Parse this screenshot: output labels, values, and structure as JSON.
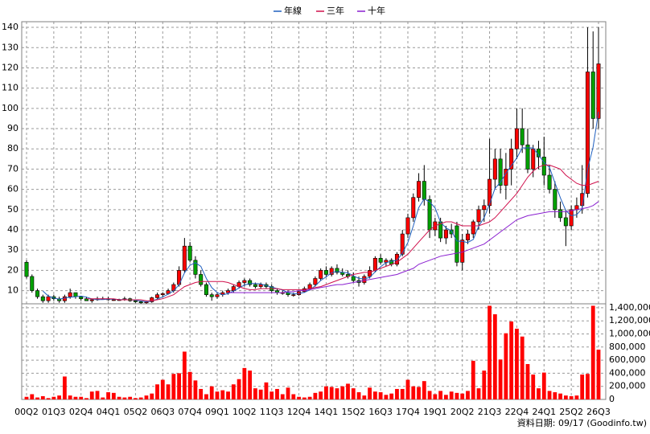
{
  "chart_data": {
    "type": "candlestick",
    "categories": [
      "00Q2",
      null,
      null,
      null,
      null,
      "01Q3",
      null,
      null,
      null,
      null,
      "02Q4",
      null,
      null,
      null,
      null,
      "04Q1",
      null,
      null,
      null,
      null,
      "05Q2",
      null,
      null,
      null,
      null,
      "06Q3",
      null,
      null,
      null,
      null,
      "07Q4",
      null,
      null,
      null,
      null,
      "09Q1",
      null,
      null,
      null,
      null,
      "10Q2",
      null,
      null,
      null,
      null,
      "11Q3",
      null,
      null,
      null,
      null,
      "12Q4",
      null,
      null,
      null,
      null,
      "14Q1",
      null,
      null,
      null,
      null,
      "15Q2",
      null,
      null,
      null,
      null,
      "16Q3",
      null,
      null,
      null,
      null,
      "17Q4",
      null,
      null,
      null,
      null,
      "19Q1",
      null,
      null,
      null,
      null,
      "20Q2",
      null,
      null,
      null,
      null,
      "21Q3",
      null,
      null,
      null,
      null,
      "22Q4",
      null,
      null,
      null,
      null,
      "24Q1",
      null,
      null,
      null,
      null,
      "25Q2",
      null,
      null,
      null,
      null,
      "26Q3"
    ],
    "ohlc": {
      "open": [
        24,
        17,
        10,
        7,
        5,
        7,
        6,
        5,
        7,
        9,
        7,
        6,
        5,
        5.5,
        6,
        6,
        5.5,
        5.5,
        5.5,
        6,
        5,
        4.5,
        4,
        4.5,
        6.5,
        8,
        8.5,
        10,
        13,
        20,
        32,
        25,
        18,
        13,
        8,
        7,
        8,
        9,
        10,
        12,
        14,
        15,
        13,
        12,
        13,
        12,
        10,
        9,
        9,
        8,
        8,
        9.5,
        11,
        13,
        16,
        20,
        18,
        21,
        19,
        18,
        17,
        15,
        14,
        17,
        20,
        26,
        24,
        25,
        23,
        28,
        38,
        46,
        56,
        64,
        55,
        40,
        44,
        36,
        40,
        42,
        24,
        35,
        38,
        44,
        50,
        52,
        65,
        75,
        62,
        70,
        80,
        90,
        82,
        70,
        80,
        76,
        67,
        60,
        50,
        46,
        42,
        50,
        52,
        58,
        118,
        95
      ],
      "high": [
        25,
        18,
        11,
        8,
        8,
        8,
        7,
        8,
        11,
        9,
        7,
        7,
        6,
        7,
        7,
        7,
        6,
        6,
        7,
        6.5,
        5.5,
        5,
        5,
        7,
        9,
        9,
        11,
        14,
        22,
        36,
        34,
        27,
        20,
        14,
        9,
        9,
        10,
        11,
        13,
        15,
        16,
        16,
        14,
        14,
        14,
        13,
        11,
        10,
        10,
        9,
        10,
        12,
        14,
        17,
        21,
        22,
        22,
        23,
        21,
        20,
        19,
        17,
        18,
        22,
        27,
        28,
        26,
        26,
        29,
        40,
        48,
        58,
        68,
        72,
        57,
        46,
        46,
        42,
        43,
        44,
        38,
        40,
        45,
        52,
        55,
        85,
        80,
        80,
        78,
        85,
        100,
        100,
        90,
        82,
        84,
        86,
        72,
        64,
        54,
        50,
        52,
        56,
        72,
        140,
        138,
        140
      ],
      "low": [
        16,
        9,
        6,
        4,
        4,
        5,
        4,
        4,
        6,
        6,
        5,
        5,
        4,
        5,
        5.5,
        5,
        5,
        5,
        5,
        4.5,
        4,
        3.5,
        3.5,
        4,
        6,
        7,
        8,
        9,
        12,
        19,
        24,
        16,
        12,
        7,
        5,
        6,
        7,
        8,
        9,
        11,
        12,
        12,
        11,
        11,
        11,
        9,
        8,
        8,
        7,
        7,
        7.5,
        9,
        10,
        12,
        15,
        17,
        17,
        18,
        17,
        16,
        14,
        12,
        13,
        16,
        19,
        23,
        22,
        22,
        22,
        27,
        36,
        44,
        54,
        52,
        36,
        37,
        34,
        33,
        36,
        22,
        20,
        33,
        36,
        40,
        44,
        48,
        60,
        58,
        55,
        62,
        75,
        78,
        68,
        66,
        70,
        62,
        58,
        46,
        44,
        32,
        40,
        46,
        48,
        56,
        90,
        90
      ],
      "close": [
        17,
        10,
        7,
        5,
        7,
        6,
        5,
        7,
        9,
        7,
        6,
        5,
        5.5,
        6,
        6,
        5.5,
        5.5,
        5.5,
        6,
        5,
        4.5,
        4,
        4.5,
        6.5,
        8,
        8.5,
        10,
        13,
        20,
        32,
        25,
        18,
        13,
        8,
        7,
        8,
        9,
        10,
        12,
        14,
        15,
        13,
        12,
        13,
        12,
        10,
        9,
        9,
        8,
        8,
        9.5,
        11,
        13,
        16,
        20,
        18,
        21,
        19,
        18,
        17,
        15,
        14,
        17,
        20,
        26,
        24,
        25,
        23,
        28,
        38,
        46,
        56,
        64,
        55,
        40,
        44,
        36,
        40,
        38,
        24,
        35,
        38,
        44,
        50,
        52,
        65,
        75,
        62,
        70,
        80,
        90,
        82,
        70,
        80,
        76,
        67,
        60,
        50,
        46,
        42,
        50,
        52,
        58,
        118,
        95,
        122
      ]
    },
    "up_color": "#ff0000",
    "down_color": "#00a000",
    "ylim": [
      3.5,
      142.8
    ],
    "yticks": [
      10,
      20,
      30,
      40,
      50,
      60,
      70,
      80,
      90,
      100,
      110,
      120,
      130,
      140
    ],
    "grid": true,
    "lines": [
      {
        "name": "年線",
        "color": "#1f5fbf",
        "values": [
          null,
          null,
          null,
          9.8,
          7.3,
          6.3,
          5.8,
          6.3,
          6.8,
          7,
          7.3,
          6.8,
          5.9,
          5.6,
          5.6,
          5.8,
          5.8,
          5.6,
          5.6,
          5.5,
          5.3,
          4.9,
          4.5,
          4.9,
          5.8,
          6.9,
          8.3,
          9.9,
          12.9,
          18.8,
          22.5,
          23.8,
          22,
          16,
          11.5,
          9,
          8,
          8.5,
          9.8,
          11.3,
          12.8,
          13.5,
          13.5,
          13.3,
          12.5,
          11.8,
          11,
          10.3,
          9,
          8.5,
          8.6,
          9.1,
          10.4,
          12.4,
          15,
          16.8,
          18.8,
          19.5,
          19,
          18.8,
          17.3,
          16,
          15.8,
          16.5,
          19.3,
          21.8,
          23.8,
          24.5,
          25,
          28.5,
          33.8,
          42,
          51,
          55.3,
          53.8,
          50.8,
          43.8,
          41,
          39.5,
          34.5,
          34.3,
          33.8,
          35.3,
          41.8,
          46,
          52.8,
          60.5,
          63.5,
          68,
          71.8,
          75.5,
          80.5,
          80.5,
          80.5,
          77,
          73.3,
          70.8,
          63.3,
          55.8,
          49.5,
          47,
          47.5,
          50.5,
          70,
          80.8,
          98.3
        ]
      },
      {
        "name": "三年",
        "color": "#d0104c",
        "values": [
          null,
          null,
          null,
          null,
          null,
          null,
          null,
          null,
          null,
          null,
          null,
          6,
          6,
          6,
          6,
          6,
          6,
          5.5,
          5.5,
          5.5,
          5.5,
          5.5,
          5,
          5,
          5.5,
          6,
          7,
          8,
          10,
          12,
          13,
          14,
          14.5,
          14.5,
          14.5,
          14.5,
          14.5,
          14,
          13,
          12,
          11,
          10.5,
          10.5,
          11,
          11,
          11,
          11,
          10.5,
          10.5,
          10.5,
          10.5,
          10.5,
          11,
          11.5,
          12,
          13,
          14,
          15,
          16,
          17,
          18,
          18.5,
          19,
          19,
          20,
          21,
          22,
          23,
          24,
          26,
          28,
          31,
          34,
          37,
          40,
          42,
          43,
          44,
          44,
          43,
          42,
          42,
          42,
          42,
          43,
          44,
          46,
          49,
          52,
          55,
          58,
          62,
          66,
          69,
          71,
          72,
          72,
          71,
          70,
          67,
          65,
          63,
          62,
          62,
          63,
          64
        ]
      },
      {
        "name": "十年",
        "color": "#8a1fd0",
        "values": [
          null,
          null,
          null,
          null,
          null,
          null,
          null,
          null,
          null,
          null,
          null,
          null,
          null,
          null,
          null,
          null,
          null,
          null,
          null,
          null,
          null,
          null,
          null,
          null,
          null,
          null,
          null,
          null,
          null,
          null,
          null,
          null,
          null,
          null,
          null,
          null,
          null,
          9,
          9,
          9,
          9,
          9,
          9,
          9,
          9,
          9,
          9,
          9,
          9.5,
          9.5,
          10,
          10,
          10.5,
          11,
          11.5,
          12,
          12.5,
          13,
          13,
          13.5,
          14,
          14.5,
          15,
          15.5,
          16,
          16.5,
          17,
          17.5,
          18,
          19,
          20,
          21,
          23,
          24,
          25,
          26,
          27,
          27.5,
          28,
          28.5,
          29,
          30,
          31,
          32,
          33,
          35,
          37,
          39,
          41,
          43,
          45,
          46,
          47,
          47.5,
          48,
          48.5,
          49,
          49,
          49,
          49,
          49.5,
          50,
          50.5,
          51,
          52,
          54
        ]
      }
    ],
    "volume": {
      "color": "#ff0000",
      "values": [
        40000,
        80000,
        30000,
        50000,
        20000,
        40000,
        60000,
        350000,
        60000,
        40000,
        40000,
        20000,
        120000,
        130000,
        30000,
        110000,
        100000,
        40000,
        30000,
        40000,
        20000,
        30000,
        60000,
        90000,
        230000,
        300000,
        230000,
        390000,
        400000,
        730000,
        420000,
        290000,
        160000,
        80000,
        200000,
        120000,
        140000,
        120000,
        230000,
        310000,
        480000,
        440000,
        170000,
        150000,
        260000,
        120000,
        160000,
        80000,
        180000,
        80000,
        40000,
        30000,
        40000,
        100000,
        120000,
        200000,
        190000,
        170000,
        200000,
        240000,
        170000,
        110000,
        60000,
        180000,
        120000,
        110000,
        70000,
        90000,
        160000,
        160000,
        300000,
        200000,
        190000,
        280000,
        130000,
        80000,
        130000,
        70000,
        120000,
        100000,
        90000,
        130000,
        590000,
        170000,
        440000,
        1430000,
        1300000,
        610000,
        1010000,
        1190000,
        1080000,
        960000,
        540000,
        380000,
        170000,
        410000,
        130000,
        110000,
        90000,
        60000,
        50000,
        60000,
        380000,
        390000,
        1430000,
        760000
      ],
      "ylim": [
        0,
        1460000
      ],
      "yticks": [
        0,
        {
          "value": 200000,
          "label": "200,000"
        },
        {
          "value": 400000,
          "label": "400,000"
        },
        {
          "value": 600000,
          "label": "600,000"
        },
        {
          "value": 800000,
          "label": "800,000"
        },
        {
          "value": 1000000,
          "label": "1,000,000"
        },
        {
          "value": 1200000,
          "label": "1,200,000"
        },
        {
          "value": 1400000,
          "label": "1,400,000"
        }
      ]
    },
    "footer": "資料日期: 09/17 (Goodinfo.tw)"
  }
}
